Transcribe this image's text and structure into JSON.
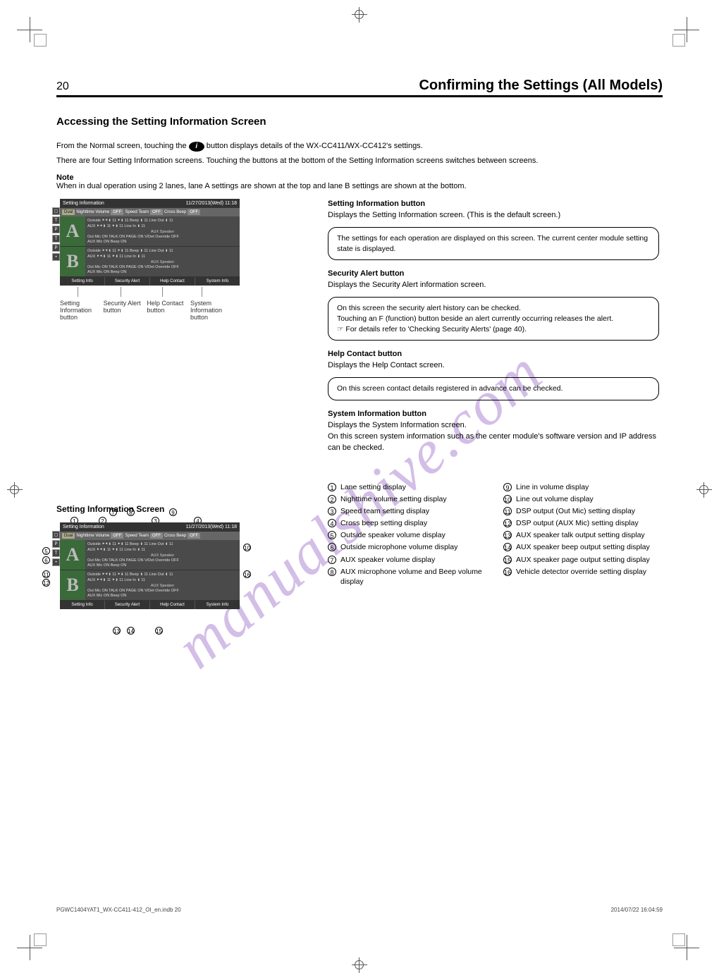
{
  "watermark": "manualshive.com",
  "header": {
    "page_number": "20",
    "title": "Confirming the Settings (All Models)"
  },
  "subheader": "Accessing the Setting Information Screen",
  "intro": {
    "p1_prefix": "From the Normal screen, touching the ",
    "p1_badge": "i",
    "p1_suffix": " button displays details of the WX-CC411/WX-CC412's settings.",
    "p2": "There are four Setting Information screens. Touching the buttons at the bottom of the Setting Information screens switches between screens.",
    "note_label": "Note",
    "note_text": "When in dual operation using 2 lanes, lane A settings are shown at the top and lane B settings are shown at the bottom."
  },
  "screenshot1": {
    "title": "Setting Information",
    "datetime": "11/27/2013(Wed)    11:18",
    "bar": {
      "dual": "Dual",
      "night": "Nighttime Volume",
      "night_state": "OFF",
      "speed": "Speed Team",
      "speed_state": "OFF",
      "cross": "Cross Beep",
      "cross_state": "OFF"
    },
    "laneA_letter": "A",
    "laneB_letter": "B",
    "row1": "Outside ⯈⯇▮ 11 ⯈▮ 11  Beep   ▮ 11  Line Out ▮ 11",
    "row2": "AUX     ⯈⯇▮ 11 ⯈▮ 11  Line In ▮ 11",
    "auxsp": "AUX Speaker",
    "row3": "Out Mic ON  TALK   ON  PAGE   ON   V/Det Override OFF",
    "row4": "AUX Mic ON  Beep   ON",
    "footer": [
      "Setting Info",
      "Security Alert",
      "Help Contact",
      "System Info"
    ]
  },
  "footer_caption": {
    "c1": "Setting Information button",
    "c2": "Security Alert button",
    "c3": "Help Contact button",
    "c4": "System Information button"
  },
  "right": {
    "item1_head": "Setting Information button",
    "item1_body": "Displays the Setting Information screen.  (This is the default screen.)",
    "box1": "The settings for each operation are displayed on this screen. The current center module setting state is displayed.",
    "item2_head": "Security Alert button",
    "item2_body": "Displays the Security Alert information screen.",
    "box2_l1": "On this screen the security alert history can be checked.",
    "box2_l2": "Touching an F (function) button beside an alert currently occurring releases the alert.",
    "box2_l3": "☞ For details refer to 'Checking Security Alerts' (page 40).",
    "item3_head": "Help Contact button",
    "item3_body": "Displays the Help Contact screen.",
    "box3": "On this screen contact details registered in advance can be checked.",
    "item4_head": "System Information button",
    "item4_body": "Displays the System Information screen.",
    "item4_body2": "On this screen system information such as the center module's software version and IP address can be checked."
  },
  "grid_title": "Setting Information Screen",
  "grid": [
    {
      "n": "1",
      "t": "Lane setting display"
    },
    {
      "n": "9",
      "t": "Line in volume display"
    },
    {
      "n": "2",
      "t": "Nighttime volume setting display"
    },
    {
      "n": "10",
      "t": "Line out volume display"
    },
    {
      "n": "3",
      "t": "Speed team setting display"
    },
    {
      "n": "11",
      "t": "DSP output (Out Mic) setting display"
    },
    {
      "n": "4",
      "t": "Cross beep setting display"
    },
    {
      "n": "12",
      "t": "DSP output (AUX Mic) setting display"
    },
    {
      "n": "5",
      "t": "Outside speaker volume display"
    },
    {
      "n": "13",
      "t": "AUX speaker talk output setting display"
    },
    {
      "n": "6",
      "t": "Outside microphone volume display"
    },
    {
      "n": "14",
      "t": "AUX speaker beep output setting display"
    },
    {
      "n": "7",
      "t": "AUX speaker volume display"
    },
    {
      "n": "15",
      "t": "AUX speaker page output setting display"
    },
    {
      "n": "8",
      "t": "AUX microphone volume and Beep volume display"
    },
    {
      "n": "16",
      "t": "Vehicle detector override setting display"
    }
  ],
  "callouts": [
    "1",
    "2",
    "3",
    "4",
    "5",
    "6",
    "7",
    "8",
    "9",
    "10",
    "11",
    "12",
    "13",
    "14",
    "15",
    "16"
  ],
  "page_foot_left": "PGWC1404YAT1_WX-CC411-412_OI_en.indb   20",
  "page_foot_right": "2014/07/22   16:04:59"
}
